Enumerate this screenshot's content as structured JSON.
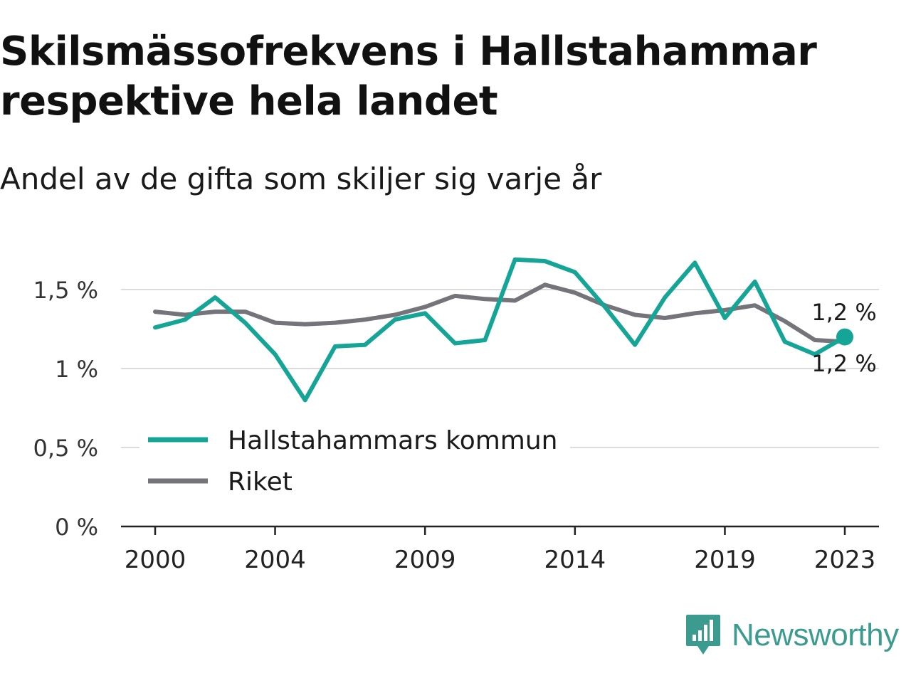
{
  "title": "Skilsmässofrekvens i Hallstahammar respektive hela landet",
  "subtitle": "Andel av de gifta som skiljer sig varje år",
  "brand": {
    "name": "Newsworthy",
    "icon": "newsworthy-logo-icon",
    "color": "#3a9b8e"
  },
  "chart_data": {
    "type": "line",
    "x": [
      2000,
      2001,
      2002,
      2003,
      2004,
      2005,
      2006,
      2007,
      2008,
      2009,
      2010,
      2011,
      2012,
      2013,
      2014,
      2015,
      2016,
      2017,
      2018,
      2019,
      2020,
      2021,
      2022,
      2023
    ],
    "xticks": [
      2000,
      2004,
      2009,
      2014,
      2019,
      2023
    ],
    "yticks": [
      0,
      0.5,
      1,
      1.5
    ],
    "ytick_labels": [
      "0 %",
      "0,5 %",
      "1 %",
      "1,5 %"
    ],
    "ylim": [
      0,
      1.75
    ],
    "grid": true,
    "legend_position": "bottom-left",
    "series": [
      {
        "name": "Hallstahammars kommun",
        "color": "#14a596",
        "values": [
          1.26,
          1.31,
          1.45,
          1.29,
          1.09,
          0.8,
          1.14,
          1.15,
          1.31,
          1.35,
          1.16,
          1.18,
          1.69,
          1.68,
          1.61,
          1.39,
          1.15,
          1.45,
          1.67,
          1.32,
          1.55,
          1.17,
          1.09,
          1.2
        ],
        "end_label": "1,2 %"
      },
      {
        "name": "Riket",
        "color": "#75747a",
        "values": [
          1.36,
          1.34,
          1.36,
          1.36,
          1.29,
          1.28,
          1.29,
          1.31,
          1.34,
          1.39,
          1.46,
          1.44,
          1.43,
          1.53,
          1.48,
          1.4,
          1.34,
          1.32,
          1.35,
          1.37,
          1.4,
          1.3,
          1.18,
          1.17
        ],
        "end_label": "1,2 %"
      }
    ]
  }
}
